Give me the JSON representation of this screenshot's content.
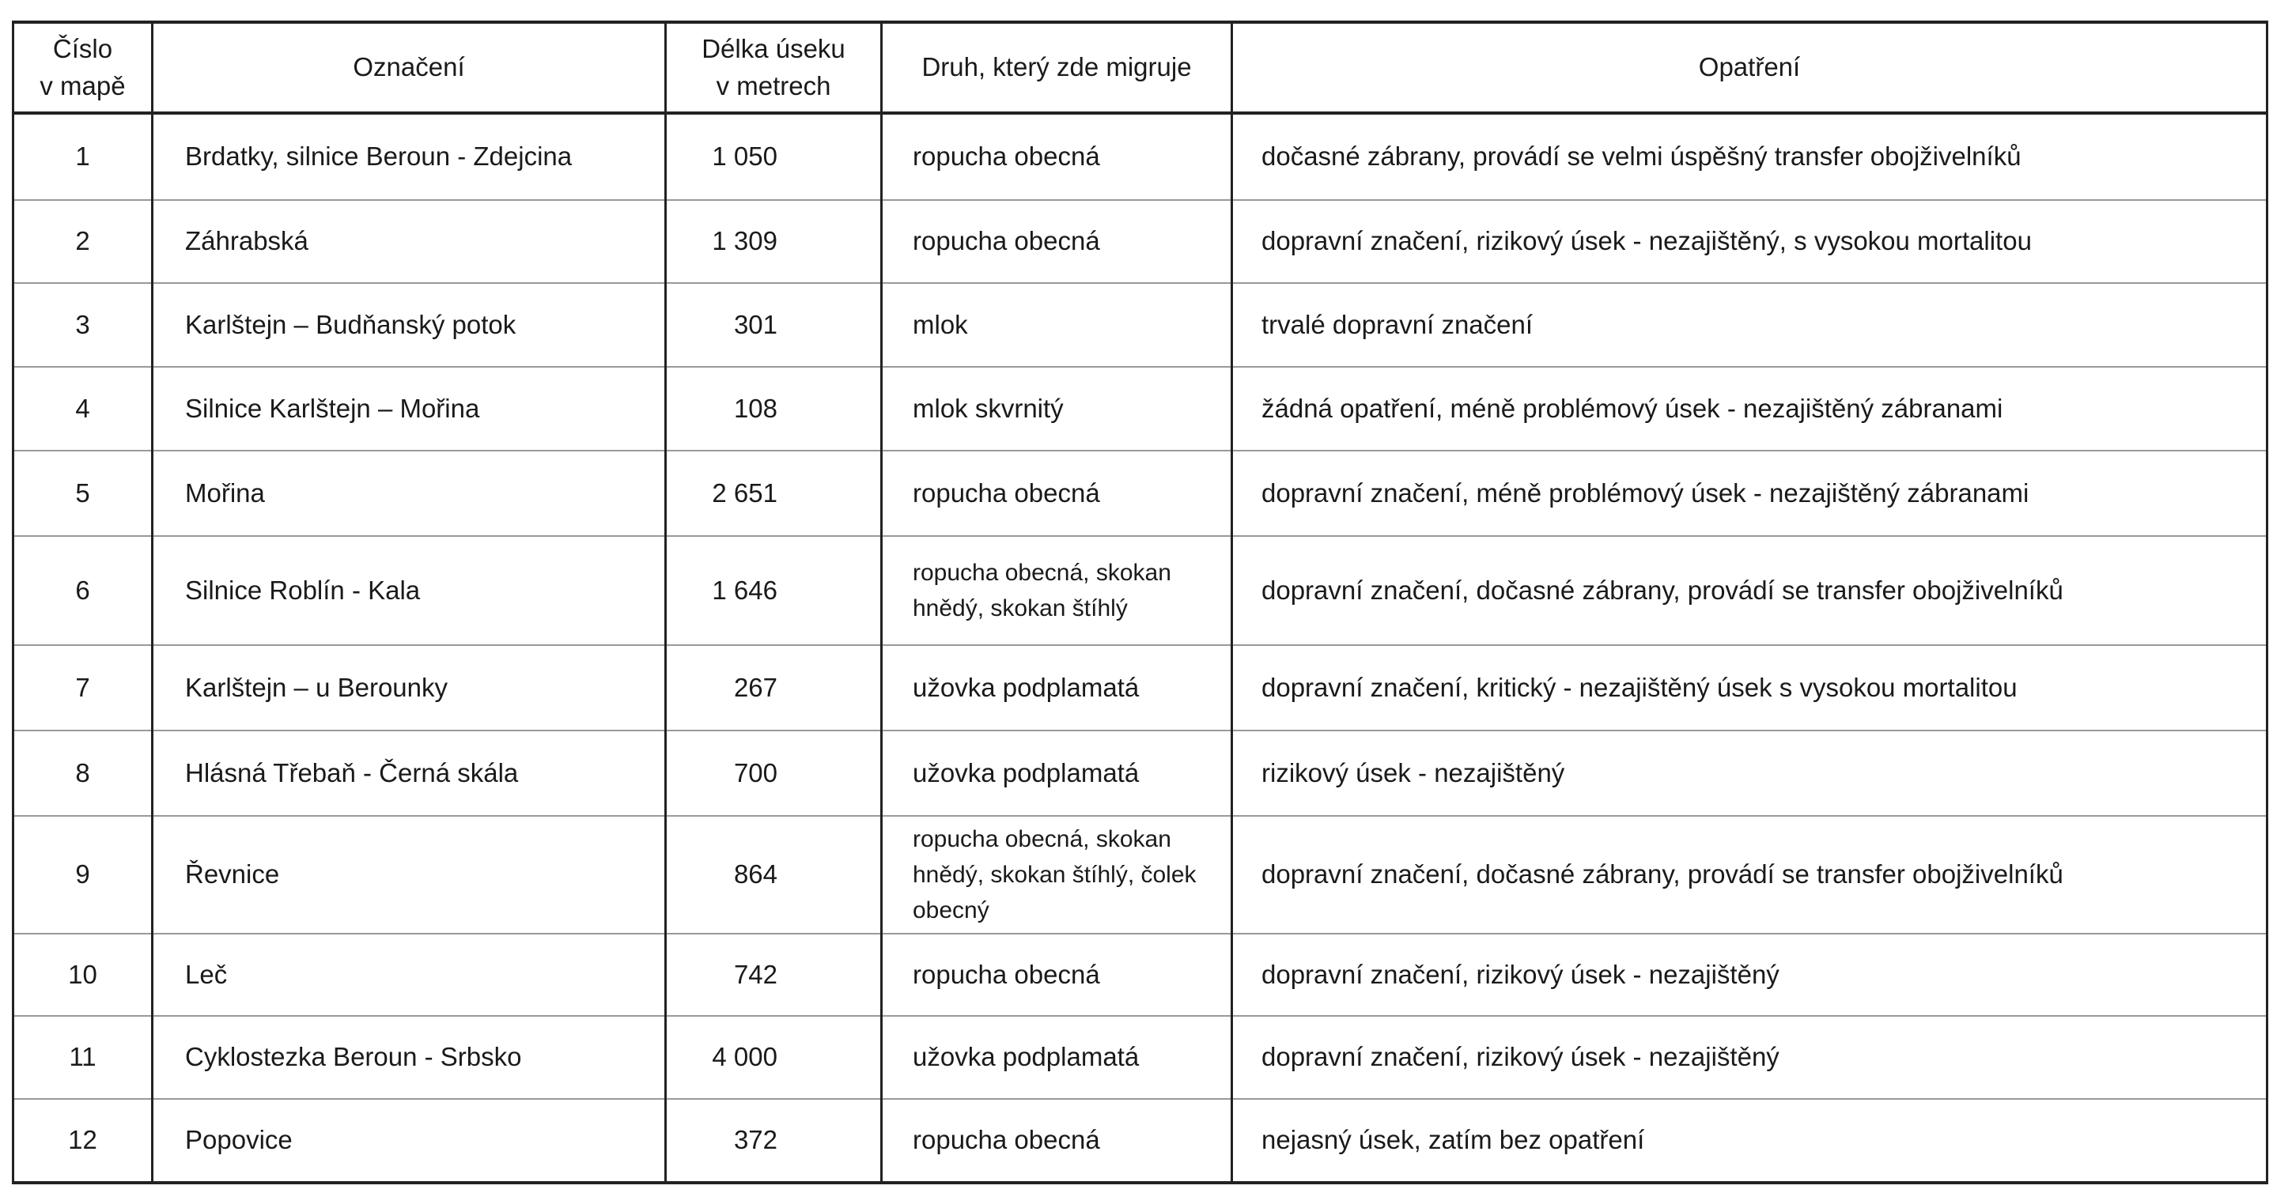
{
  "headers": {
    "number": [
      "Číslo",
      "v mapě"
    ],
    "name": "Označení",
    "length": [
      "Délka úseku",
      "v metrech"
    ],
    "species": "Druh, který zde migruje",
    "measures": "Opatření"
  },
  "rows": [
    {
      "number": "1",
      "name": "Brdatky, silnice Beroun - Zdejcina",
      "length": "1 050",
      "species": "ropucha obecná",
      "measures": "dočasné zábrany, provádí se velmi úspěšný transfer obojživelníků"
    },
    {
      "number": "2",
      "name": "Záhrabská",
      "length": "1 309",
      "species": "ropucha obecná",
      "measures": "dopravní značení, rizikový úsek - nezajištěný, s vysokou mortalitou"
    },
    {
      "number": "3",
      "name": "Karlštejn – Budňanský potok",
      "length": "301",
      "species": "mlok",
      "measures": "trvalé dopravní značení"
    },
    {
      "number": "4",
      "name": "Silnice Karlštejn – Mořina",
      "length": "108",
      "species": "mlok skvrnitý",
      "measures": "žádná opatření, méně problémový úsek - nezajištěný zábranami"
    },
    {
      "number": "5",
      "name": "Mořina",
      "length": "2 651",
      "species": "ropucha obecná",
      "measures": "dopravní značení, méně problémový úsek - nezajištěný zábranami"
    },
    {
      "number": "6",
      "name": "Silnice Roblín - Kala",
      "length": "1 646",
      "species": "ropucha obecná, skokan hnědý, skokan štíhlý",
      "measures": "dopravní značení, dočasné zábrany, provádí se transfer obojživelníků"
    },
    {
      "number": "7",
      "name": "Karlštejn – u Berounky",
      "length": "267",
      "species": "užovka podplamatá",
      "measures": "dopravní značení, kritický - nezajištěný úsek s vysokou mortalitou"
    },
    {
      "number": "8",
      "name": "Hlásná Třebaň - Černá skála",
      "length": "700",
      "species": "užovka podplamatá",
      "measures": "rizikový úsek - nezajištěný"
    },
    {
      "number": "9",
      "name": "Řevnice",
      "length": "864",
      "species": "ropucha obecná, skokan hnědý, skokan štíhlý, čolek obecný",
      "measures": "dopravní značení, dočasné zábrany, provádí se transfer obojživelníků"
    },
    {
      "number": "10",
      "name": "Leč",
      "length": "742",
      "species": "ropucha obecná",
      "measures": "dopravní značení, rizikový úsek - nezajištěný"
    },
    {
      "number": "11",
      "name": "Cyklostezka Beroun - Srbsko",
      "length": "4 000",
      "species": "užovka podplamatá",
      "measures": "dopravní značení, rizikový úsek - nezajištěný"
    },
    {
      "number": "12",
      "name": "Popovice",
      "length": "372",
      "species": "ropucha obecná",
      "measures": "nejasný úsek, zatím bez opatření"
    }
  ]
}
